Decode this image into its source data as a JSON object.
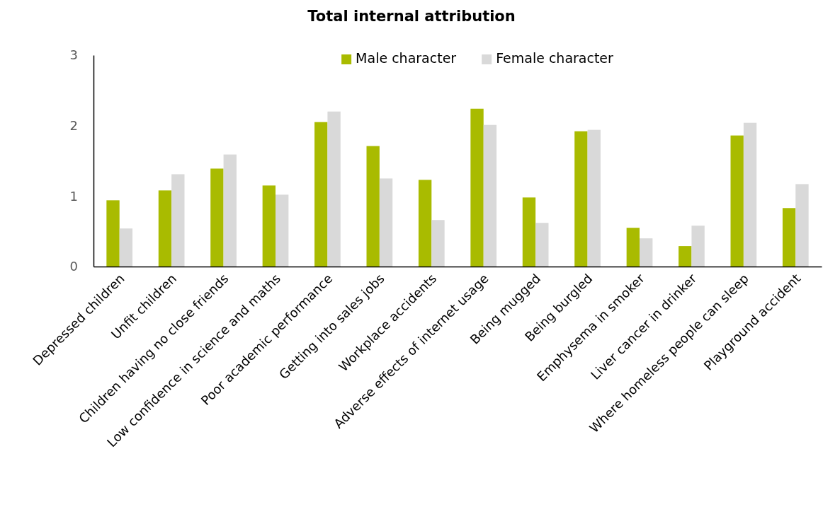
{
  "chart_data": {
    "type": "bar",
    "title": "Total internal attribution",
    "categories": [
      "Depressed children",
      "Unfit children",
      "Children having no close friends",
      "Low confidence in science and maths",
      "Poor academic performance",
      "Getting into sales jobs",
      "Workplace accidents",
      "Adverse effects of internet usage",
      "Being mugged",
      "Being burgled",
      "Emphysema in smoker",
      "Liver cancer in drinker",
      "Where homeless people can sleep",
      "Playground accident"
    ],
    "series": [
      {
        "name": "Male character",
        "color": "#a9bb00",
        "values": [
          0.94,
          1.08,
          1.39,
          1.15,
          2.05,
          1.71,
          1.23,
          2.24,
          0.98,
          1.92,
          0.55,
          0.29,
          1.86,
          0.83
        ]
      },
      {
        "name": "Female character",
        "color": "#d9d9d9",
        "values": [
          0.54,
          1.31,
          1.59,
          1.02,
          2.2,
          1.25,
          0.66,
          2.01,
          0.62,
          1.94,
          0.4,
          0.58,
          2.04,
          1.17
        ]
      }
    ],
    "ylim": [
      0,
      3
    ],
    "yticks": [
      0,
      1,
      2,
      3
    ],
    "grid": false,
    "legend": "top"
  }
}
